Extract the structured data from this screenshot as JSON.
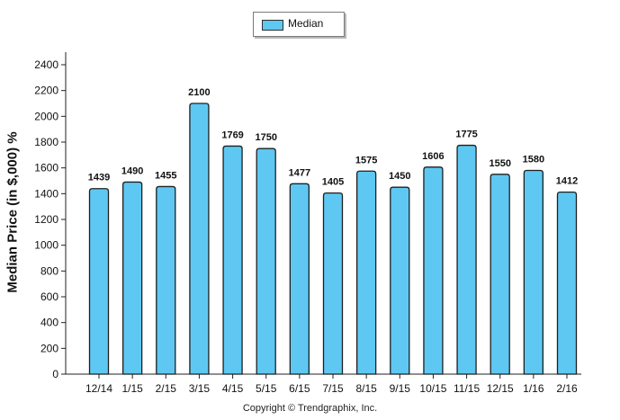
{
  "legend": {
    "label": "Median",
    "color": "#5ec8f2"
  },
  "footer": {
    "copyright": "Copyright © Trendgraphix, Inc."
  },
  "chart_data": {
    "type": "bar",
    "title": "",
    "xlabel": "",
    "ylabel": "Median Price (in $,000) %",
    "ylim": [
      0,
      2400
    ],
    "yticks": [
      0,
      200,
      400,
      600,
      800,
      1000,
      1200,
      1400,
      1600,
      1800,
      2000,
      2200,
      2400
    ],
    "grid": false,
    "legend_position": "top-center",
    "categories": [
      "12/14",
      "1/15",
      "2/15",
      "3/15",
      "4/15",
      "5/15",
      "6/15",
      "7/15",
      "8/15",
      "9/15",
      "10/15",
      "11/15",
      "12/15",
      "1/16",
      "2/16"
    ],
    "series": [
      {
        "name": "Median",
        "color": "#5ec8f2",
        "values": [
          1439,
          1490,
          1455,
          2100,
          1769,
          1750,
          1477,
          1405,
          1575,
          1450,
          1606,
          1775,
          1550,
          1580,
          1412
        ]
      }
    ]
  }
}
